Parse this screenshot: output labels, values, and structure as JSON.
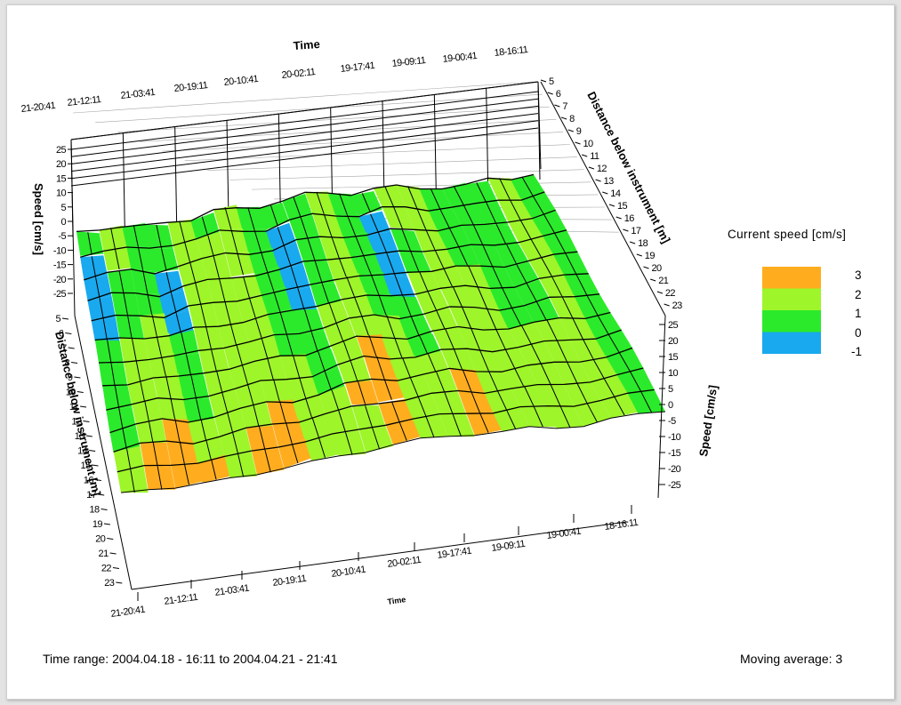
{
  "chart_data": {
    "type": "surface",
    "title": "",
    "time_axis": {
      "label": "Time",
      "ticks": [
        "21-20:41",
        "21-12:11",
        "21-03:41",
        "20-19:11",
        "20-10:41",
        "20-02:11",
        "19-17:41",
        "19-09:11",
        "19-00:41",
        "18-16:11"
      ]
    },
    "depth_axis": {
      "label": "Distance below instrument [m]",
      "range": [
        5,
        23
      ],
      "ticks": [
        "5",
        "6",
        "7",
        "8",
        "9",
        "10",
        "11",
        "12",
        "13",
        "14",
        "15",
        "16",
        "17",
        "18",
        "19",
        "20",
        "21",
        "22",
        "23"
      ]
    },
    "speed_axis": {
      "label": "Speed [cm/s]",
      "range": [
        -25,
        25
      ],
      "ticks": [
        "25",
        "20",
        "15",
        "10",
        "5",
        "0",
        "-5",
        "-10",
        "-15",
        "-20",
        "-25"
      ]
    },
    "legend": {
      "title": "Current speed [cm/s]",
      "entries": [
        {
          "label": "3",
          "color": "#ffad1f"
        },
        {
          "label": "2",
          "color": "#9ef52a"
        },
        {
          "label": "1",
          "color": "#2bea2b"
        },
        {
          "label": "0",
          "color": "#19a9ee"
        },
        {
          "label": "-1",
          "color": ""
        }
      ]
    },
    "depth_rows": [
      {
        "depth": 5,
        "speed": [
          0.5,
          1.5,
          1.0,
          0.5,
          1.5,
          1.0,
          2.0,
          1.0,
          0.5,
          1.0,
          1.5,
          1.0,
          0.5,
          1.5,
          1.5,
          1.0,
          1.0,
          0.5,
          1.5,
          1.0
        ]
      },
      {
        "depth": 6,
        "speed": [
          0.0,
          1.5,
          1.0,
          0.5,
          1.5,
          1.5,
          2.0,
          1.0,
          0.0,
          1.0,
          1.5,
          1.0,
          0.0,
          1.5,
          1.5,
          1.0,
          1.0,
          0.5,
          1.5,
          1.0
        ]
      },
      {
        "depth": 7,
        "speed": [
          0.0,
          1.0,
          1.0,
          0.0,
          1.5,
          1.5,
          2.0,
          1.0,
          0.0,
          1.0,
          1.5,
          1.0,
          0.0,
          1.0,
          1.5,
          1.0,
          1.0,
          0.5,
          1.5,
          1.0
        ]
      },
      {
        "depth": 8,
        "speed": [
          0.0,
          1.0,
          1.0,
          0.0,
          1.5,
          1.5,
          1.5,
          1.0,
          0.0,
          1.0,
          1.5,
          1.0,
          0.0,
          1.0,
          1.5,
          1.0,
          1.0,
          1.0,
          1.5,
          1.0
        ]
      },
      {
        "depth": 9,
        "speed": [
          0.0,
          1.0,
          1.5,
          0.0,
          1.5,
          1.5,
          1.5,
          1.0,
          0.0,
          1.0,
          2.0,
          1.0,
          0.0,
          1.5,
          1.5,
          1.5,
          1.0,
          1.0,
          1.5,
          1.0
        ]
      },
      {
        "depth": 10,
        "speed": [
          0.5,
          1.5,
          1.5,
          0.5,
          1.5,
          1.5,
          1.5,
          1.0,
          0.5,
          1.5,
          2.0,
          1.0,
          0.5,
          1.5,
          2.0,
          1.5,
          1.0,
          1.0,
          1.5,
          1.0
        ]
      },
      {
        "depth": 11,
        "speed": [
          0.5,
          1.5,
          1.5,
          0.5,
          1.5,
          2.0,
          1.5,
          1.0,
          0.5,
          1.5,
          2.0,
          1.5,
          0.5,
          1.5,
          2.0,
          1.5,
          1.0,
          1.0,
          1.5,
          1.0
        ]
      },
      {
        "depth": 12,
        "speed": [
          1.0,
          1.5,
          2.0,
          1.0,
          2.0,
          2.0,
          1.5,
          1.5,
          1.0,
          2.0,
          2.5,
          1.5,
          1.0,
          2.0,
          2.0,
          1.5,
          1.5,
          1.5,
          1.5,
          1.0
        ]
      },
      {
        "depth": 13,
        "speed": [
          1.0,
          2.0,
          2.0,
          1.0,
          2.0,
          2.0,
          2.0,
          1.5,
          1.0,
          2.0,
          3.0,
          2.0,
          1.5,
          2.0,
          2.0,
          1.5,
          1.5,
          1.5,
          1.5,
          1.0
        ]
      },
      {
        "depth": 14,
        "speed": [
          1.0,
          2.0,
          2.5,
          1.5,
          2.0,
          2.0,
          2.5,
          1.5,
          1.5,
          2.5,
          3.0,
          2.0,
          2.0,
          2.5,
          2.0,
          1.5,
          1.5,
          1.5,
          1.5,
          1.0
        ]
      },
      {
        "depth": 15,
        "speed": [
          1.5,
          2.5,
          3.0,
          2.0,
          2.0,
          2.5,
          3.0,
          2.0,
          1.5,
          2.0,
          2.5,
          2.0,
          2.0,
          2.5,
          2.0,
          2.0,
          1.5,
          1.5,
          1.5,
          1.0
        ]
      },
      {
        "depth": 16,
        "speed": [
          1.5,
          2.5,
          3.0,
          2.5,
          2.0,
          2.5,
          3.0,
          2.0,
          1.5,
          2.0,
          2.5,
          2.0,
          2.0,
          2.5,
          2.0,
          2.0,
          1.5,
          1.5,
          1.5,
          1.0
        ]
      }
    ],
    "footer": {
      "time_range": "Time range: 2004.04.18 - 16:11  to  2004.04.21 - 21:41",
      "moving_average": "Moving average: 3"
    }
  }
}
